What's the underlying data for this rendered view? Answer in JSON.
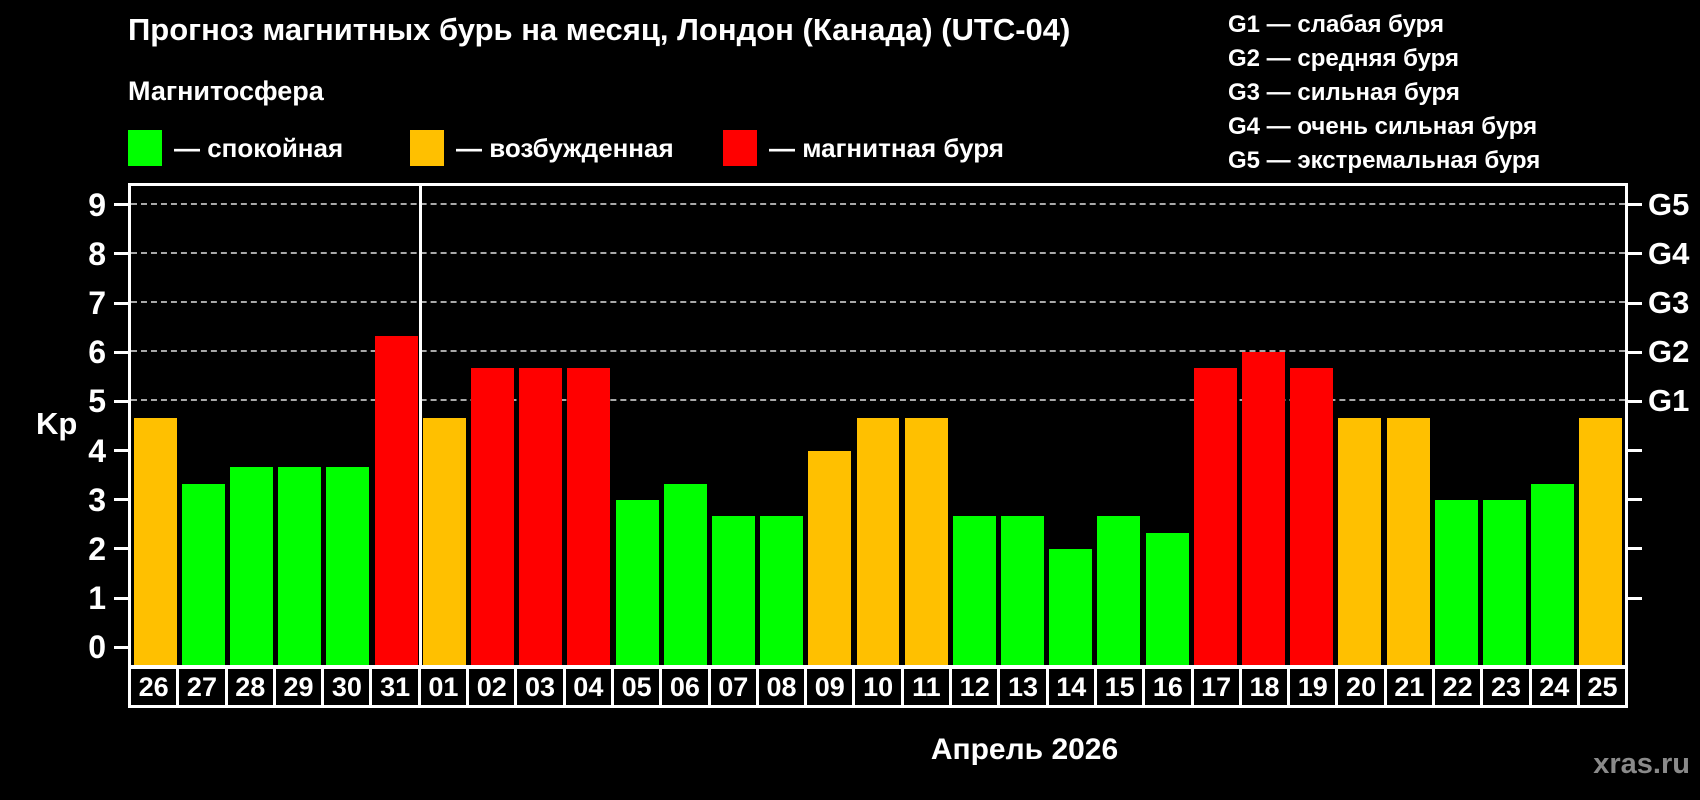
{
  "title": "Прогноз магнитных бурь на месяц, Лондон (Канада) (UTC-04)",
  "subtitle": "Магнитосфера",
  "watermark": "xras.ru",
  "state_colors": {
    "quiet": "#00FF00",
    "excited": "#FFC000",
    "storm": "#FF0000"
  },
  "legend": [
    {
      "key": "quiet",
      "label": "— спокойная",
      "color": "#00FF00"
    },
    {
      "key": "excited",
      "label": "— возбужденная",
      "color": "#FFC000"
    },
    {
      "key": "storm",
      "label": "— магнитная буря",
      "color": "#FF0000"
    }
  ],
  "g_legend": [
    "G1 — слабая буря",
    "G2 — средняя буря",
    "G3 — сильная буря",
    "G4 — очень сильная буря",
    "G5 — экстремальная буря"
  ],
  "chart_data": {
    "type": "bar",
    "title": "Прогноз магнитных бурь на месяц, Лондон (Канада) (UTC-04)",
    "xlabel": "Апрель 2026",
    "ylabel": "Kp",
    "ylim": [
      0,
      9
    ],
    "yticks": [
      0,
      1,
      2,
      3,
      4,
      5,
      6,
      7,
      8,
      9
    ],
    "right_ticks": [
      1,
      2,
      3,
      4,
      5,
      6,
      7,
      8,
      9
    ],
    "gridlines_at": [
      5,
      6,
      7,
      8,
      9
    ],
    "grid": "dashed horizontal lines at Kp 5-9",
    "legend_position": "top-left",
    "g_levels": [
      {
        "label": "G1",
        "kp": 5
      },
      {
        "label": "G2",
        "kp": 6
      },
      {
        "label": "G3",
        "kp": 7
      },
      {
        "label": "G4",
        "kp": 8
      },
      {
        "label": "G5",
        "kp": 9
      }
    ],
    "categories": [
      "26",
      "27",
      "28",
      "29",
      "30",
      "31",
      "01",
      "02",
      "03",
      "04",
      "05",
      "06",
      "07",
      "08",
      "09",
      "10",
      "11",
      "12",
      "13",
      "14",
      "15",
      "16",
      "17",
      "18",
      "19",
      "20",
      "21",
      "22",
      "23",
      "24",
      "25"
    ],
    "values": [
      4.67,
      3.33,
      3.67,
      3.67,
      3.67,
      6.33,
      4.67,
      5.67,
      5.67,
      5.67,
      3.0,
      3.33,
      2.67,
      2.67,
      4.0,
      4.67,
      4.67,
      2.67,
      2.67,
      2.0,
      2.67,
      2.33,
      5.67,
      6.0,
      5.67,
      4.67,
      4.67,
      3.0,
      3.0,
      3.33,
      4.67
    ],
    "states": [
      "excited",
      "quiet",
      "quiet",
      "quiet",
      "quiet",
      "storm",
      "excited",
      "storm",
      "storm",
      "storm",
      "quiet",
      "quiet",
      "quiet",
      "quiet",
      "excited",
      "excited",
      "excited",
      "quiet",
      "quiet",
      "quiet",
      "quiet",
      "quiet",
      "storm",
      "storm",
      "storm",
      "excited",
      "excited",
      "quiet",
      "quiet",
      "quiet",
      "excited"
    ],
    "month_separator_after_index": 5
  }
}
